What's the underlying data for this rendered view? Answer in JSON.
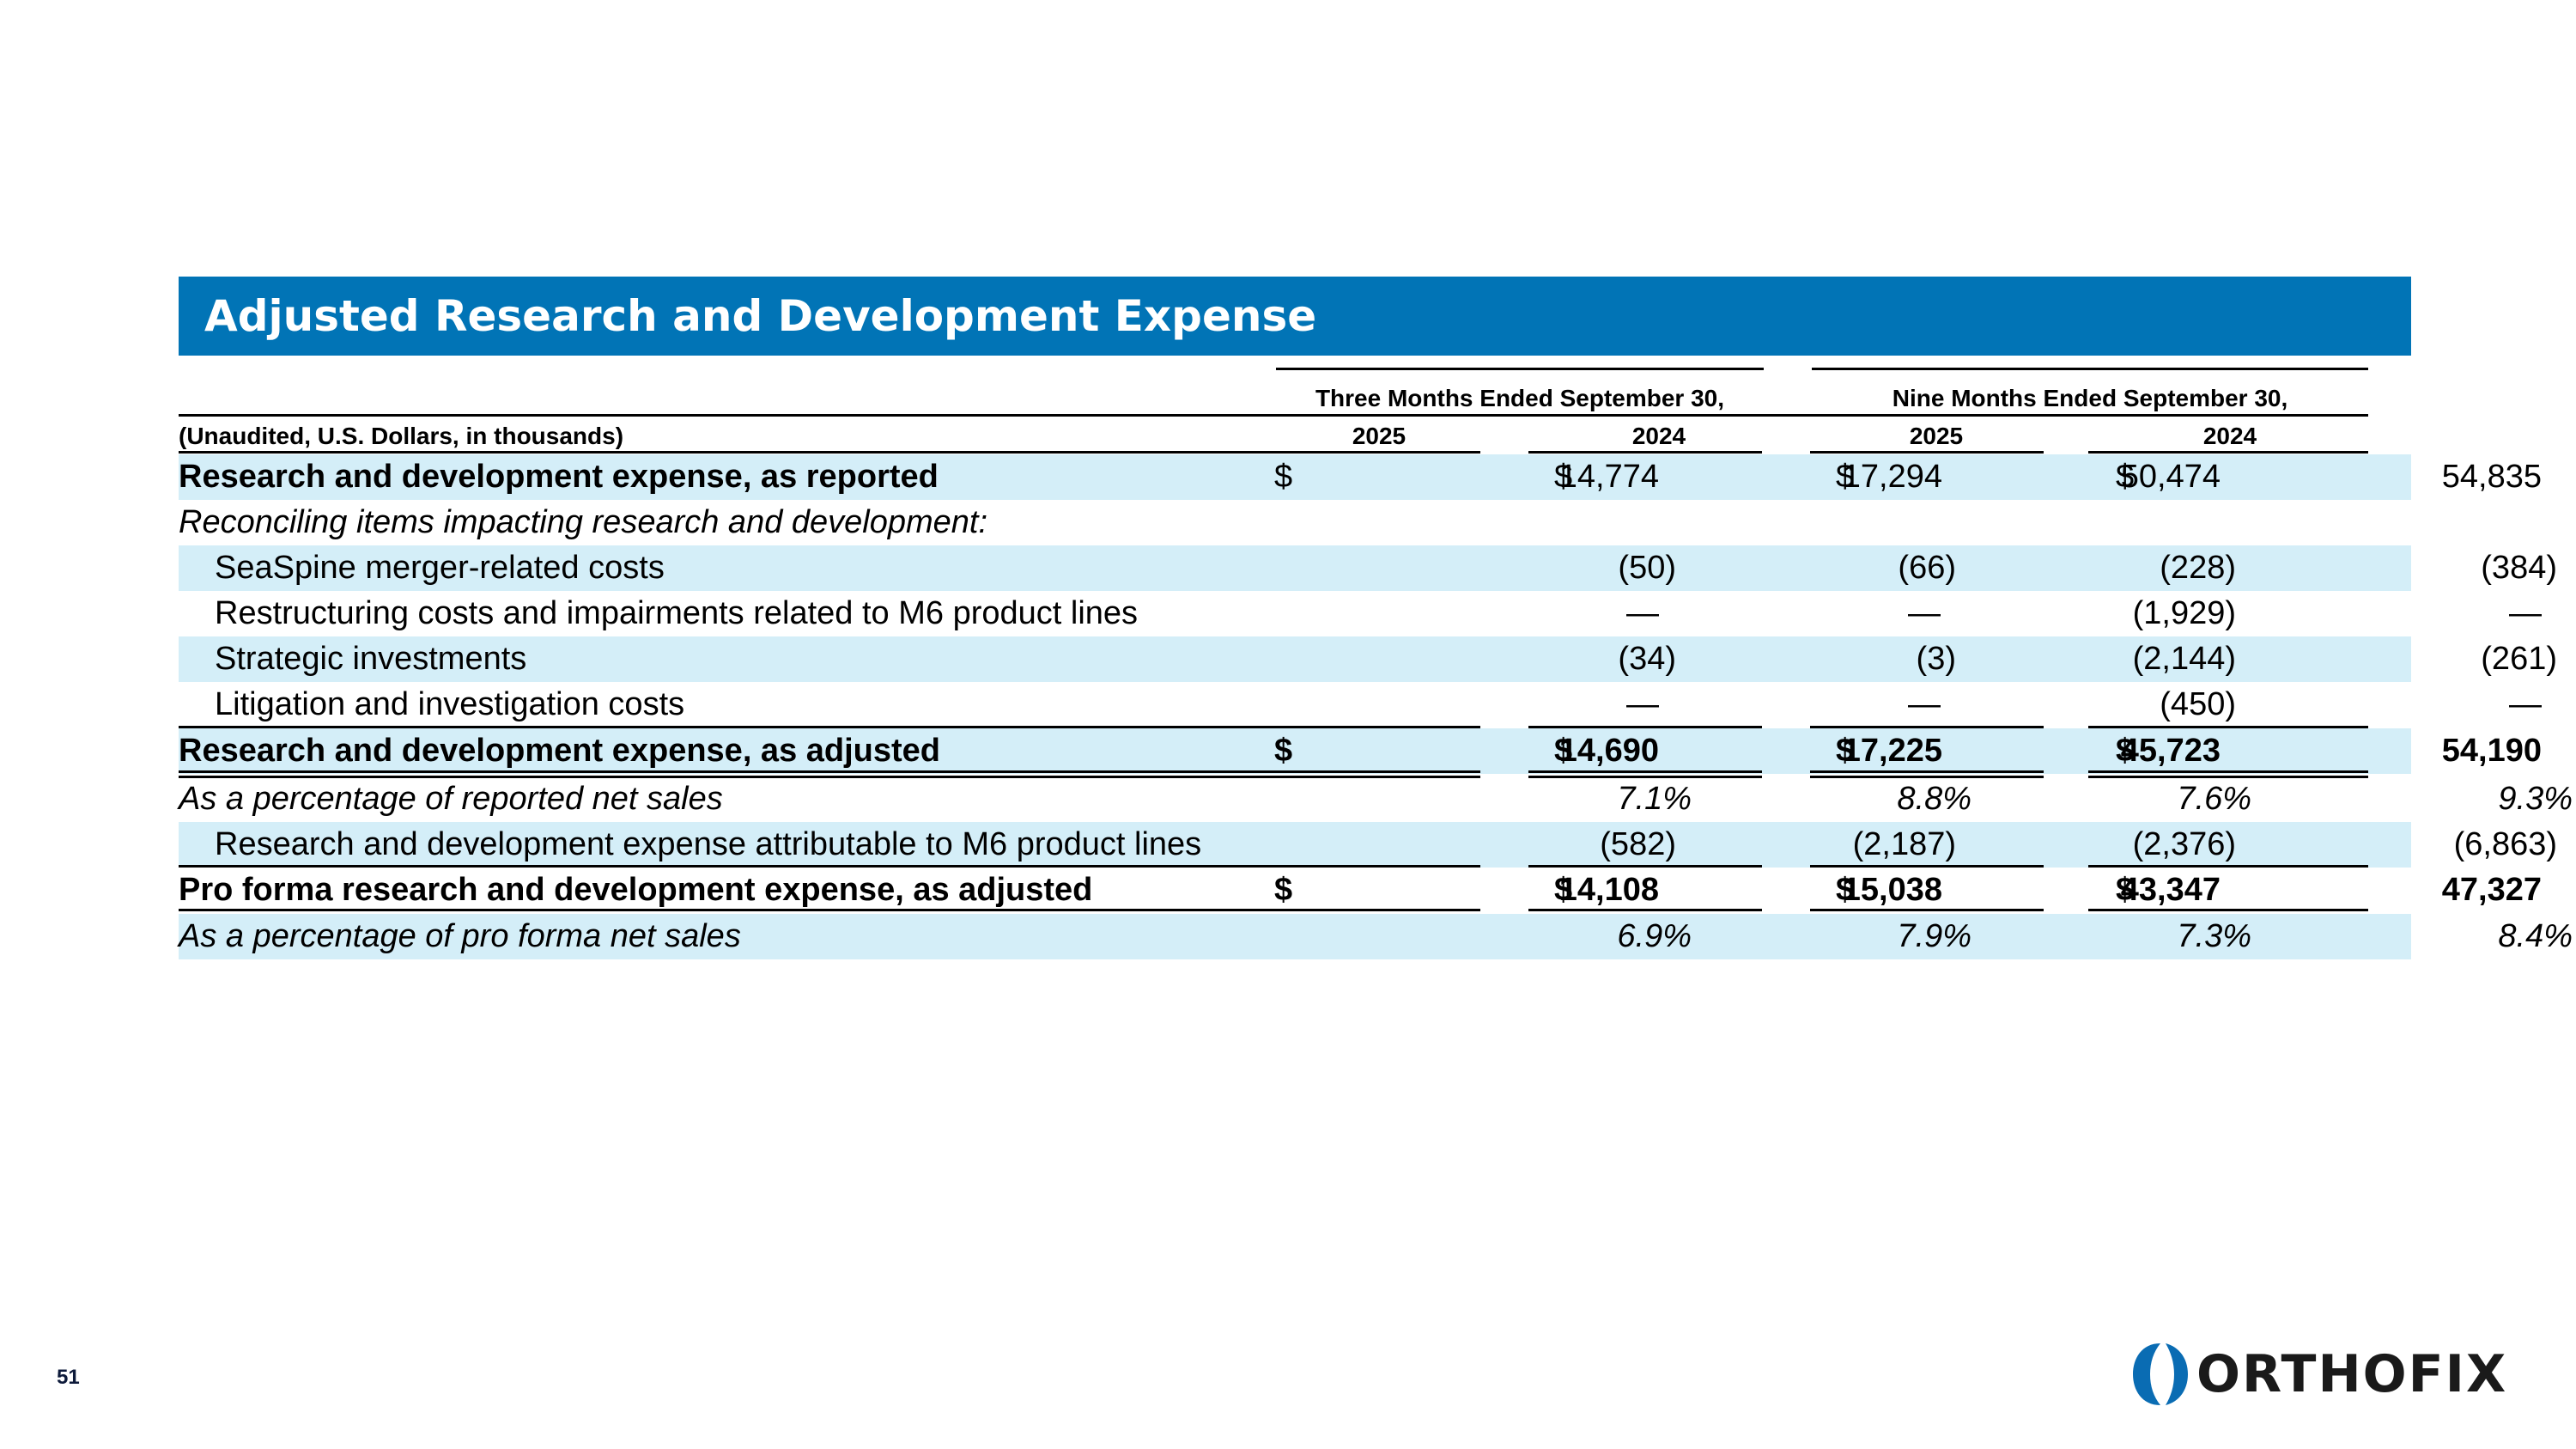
{
  "title": "Adjusted Research and Development Expense",
  "header": {
    "unit_note": "(Unaudited, U.S. Dollars, in thousands)",
    "group_three_months": "Three Months Ended September 30,",
    "group_nine_months": "Nine Months Ended September 30,",
    "years": [
      "2025",
      "2024",
      "2025",
      "2024"
    ]
  },
  "rows": [
    {
      "label": "Research and development expense, as reported",
      "values": [
        "14,774",
        "17,294",
        "50,474",
        "54,835"
      ]
    },
    {
      "label": "Reconciling items impacting research and development:",
      "values": []
    },
    {
      "label": "SeaSpine merger-related costs",
      "values": [
        "(50)",
        "(66)",
        "(228)",
        "(384)"
      ]
    },
    {
      "label": "Restructuring costs and impairments related to M6 product lines",
      "values": [
        "—",
        "—",
        "(1,929)",
        "—"
      ]
    },
    {
      "label": "Strategic investments",
      "values": [
        "(34)",
        "(3)",
        "(2,144)",
        "(261)"
      ]
    },
    {
      "label": "Litigation and investigation costs",
      "values": [
        "—",
        "—",
        "(450)",
        "—"
      ]
    },
    {
      "label": "Research and development expense, as adjusted",
      "values": [
        "14,690",
        "17,225",
        "45,723",
        "54,190"
      ]
    },
    {
      "label": "As a percentage of reported net sales",
      "values": [
        "7.1%",
        "8.8%",
        "7.6%",
        "9.3%"
      ]
    },
    {
      "label": "Research and development expense attributable to M6 product lines",
      "values": [
        "(582)",
        "(2,187)",
        "(2,376)",
        "(6,863)"
      ]
    },
    {
      "label": "Pro forma research and development expense, as adjusted",
      "values": [
        "14,108",
        "15,038",
        "43,347",
        "47,327"
      ]
    },
    {
      "label": "As a percentage of pro forma net sales",
      "values": [
        "6.9%",
        "7.9%",
        "7.3%",
        "8.4%"
      ]
    }
  ],
  "currency_symbol": "$",
  "page_number": "51",
  "logo_text": "ORTHOFIX",
  "colors": {
    "title_bar": "#0174b6",
    "band": "#d4eef8",
    "logo_blue": "#0a6cb3"
  }
}
